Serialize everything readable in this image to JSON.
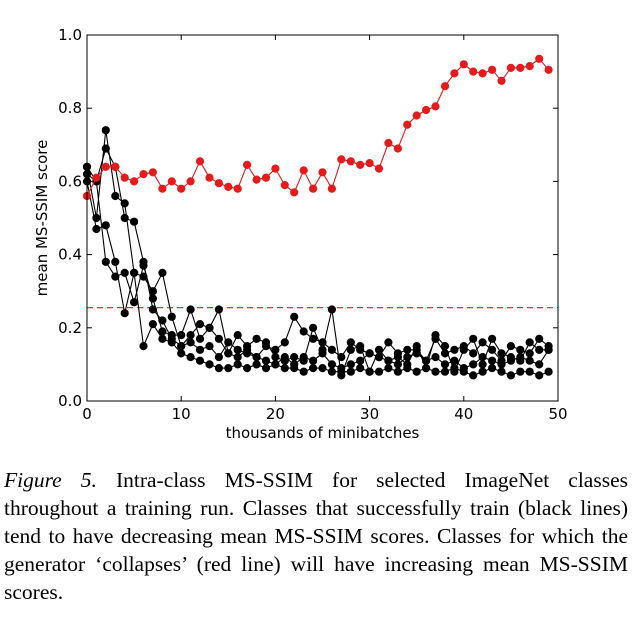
{
  "chart_data": {
    "type": "line",
    "title": "",
    "xlabel": "thousands of minibatches",
    "ylabel": "mean MS-SSIM score",
    "xlim": [
      0,
      50
    ],
    "ylim": [
      0.0,
      1.0
    ],
    "xticks": [
      "0",
      "10",
      "20",
      "30",
      "40",
      "50"
    ],
    "yticks": [
      "0.0",
      "0.2",
      "0.4",
      "0.6",
      "0.8",
      "1.0"
    ],
    "grid": false,
    "threshold": 0.255,
    "colors": {
      "collapse": "#e41a1c",
      "train": "#000000",
      "threshold": "#e41a1c"
    },
    "series": [
      {
        "kind": "collapse",
        "x": [
          0,
          1,
          2,
          3,
          4,
          5,
          6,
          7,
          8,
          9,
          10,
          11,
          12,
          13,
          14,
          15,
          16,
          17,
          18,
          19,
          20,
          21,
          22,
          23,
          24,
          25,
          26,
          27,
          28,
          29,
          30,
          31,
          32,
          33,
          34,
          35,
          36,
          37,
          38,
          39,
          40,
          41,
          42,
          43,
          44,
          45,
          46,
          47,
          48,
          49
        ],
        "y": [
          0.56,
          0.61,
          0.64,
          0.64,
          0.61,
          0.6,
          0.62,
          0.625,
          0.58,
          0.6,
          0.58,
          0.6,
          0.655,
          0.61,
          0.595,
          0.585,
          0.58,
          0.645,
          0.605,
          0.61,
          0.635,
          0.59,
          0.57,
          0.63,
          0.58,
          0.625,
          0.58,
          0.66,
          0.655,
          0.645,
          0.65,
          0.635,
          0.705,
          0.69,
          0.755,
          0.78,
          0.795,
          0.805,
          0.86,
          0.895,
          0.92,
          0.9,
          0.895,
          0.905,
          0.875,
          0.91,
          0.91,
          0.915,
          0.935,
          0.905
        ]
      },
      {
        "kind": "train",
        "x": [
          0,
          1,
          2,
          3,
          4,
          5,
          6,
          7,
          8,
          9,
          10,
          11,
          12,
          13,
          14,
          15,
          16,
          17,
          18,
          19,
          20,
          21,
          22,
          23,
          24,
          25,
          26,
          27,
          28,
          29,
          30,
          31,
          32,
          33,
          34,
          35,
          36,
          37,
          38,
          39,
          40,
          41,
          42,
          43,
          44,
          45,
          46,
          47,
          48,
          49
        ],
        "y": [
          0.64,
          0.5,
          0.74,
          0.56,
          0.54,
          0.35,
          0.34,
          0.3,
          0.35,
          0.23,
          0.15,
          0.18,
          0.21,
          0.2,
          0.17,
          0.13,
          0.12,
          0.14,
          0.12,
          0.15,
          0.14,
          0.16,
          0.23,
          0.19,
          0.17,
          0.16,
          0.14,
          0.12,
          0.16,
          0.14,
          0.13,
          0.12,
          0.16,
          0.13,
          0.14,
          0.14,
          0.11,
          0.17,
          0.13,
          0.14,
          0.15,
          0.13,
          0.16,
          0.14,
          0.11,
          0.15,
          0.14,
          0.13,
          0.17,
          0.15
        ]
      },
      {
        "kind": "train",
        "x": [
          0,
          1,
          2,
          3,
          4,
          5,
          6,
          7,
          8,
          9,
          10,
          11,
          12,
          13,
          14,
          15,
          16,
          17,
          18,
          19,
          20,
          21,
          22,
          23,
          24,
          25,
          26,
          27,
          28,
          29,
          30,
          31,
          32,
          33,
          34,
          35,
          36,
          37,
          38,
          39,
          40,
          41,
          42,
          43,
          44,
          45,
          46,
          47,
          48,
          49
        ],
        "y": [
          0.62,
          0.6,
          0.69,
          0.64,
          0.5,
          0.49,
          0.38,
          0.25,
          0.22,
          0.17,
          0.15,
          0.16,
          0.14,
          0.15,
          0.12,
          0.16,
          0.14,
          0.13,
          0.12,
          0.11,
          0.1,
          0.12,
          0.1,
          0.12,
          0.11,
          0.13,
          0.1,
          0.09,
          0.1,
          0.11,
          0.13,
          0.12,
          0.11,
          0.1,
          0.12,
          0.13,
          0.11,
          0.12,
          0.1,
          0.11,
          0.09,
          0.1,
          0.12,
          0.11,
          0.1,
          0.11,
          0.12,
          0.11,
          0.1,
          0.14
        ]
      },
      {
        "kind": "train",
        "x": [
          0,
          1,
          2,
          3,
          4,
          5,
          6,
          7,
          8,
          9,
          10,
          11,
          12,
          13,
          14,
          15,
          16,
          17,
          18,
          19,
          20,
          21,
          22,
          23,
          24,
          25,
          26,
          27,
          28,
          29,
          30,
          31,
          32,
          33,
          34,
          35,
          36,
          37,
          38,
          39,
          40,
          41,
          42,
          43,
          44,
          45,
          46,
          47,
          48,
          49
        ],
        "y": [
          0.6,
          0.47,
          0.48,
          0.38,
          0.24,
          0.35,
          0.15,
          0.21,
          0.17,
          0.16,
          0.13,
          0.12,
          0.11,
          0.1,
          0.09,
          0.09,
          0.1,
          0.09,
          0.1,
          0.09,
          0.1,
          0.09,
          0.09,
          0.08,
          0.09,
          0.09,
          0.08,
          0.08,
          0.08,
          0.09,
          0.08,
          0.08,
          0.09,
          0.08,
          0.09,
          0.08,
          0.09,
          0.08,
          0.08,
          0.09,
          0.08,
          0.07,
          0.08,
          0.09,
          0.08,
          0.07,
          0.08,
          0.08,
          0.07,
          0.08
        ]
      },
      {
        "kind": "train",
        "x": [
          0,
          1,
          2,
          3,
          4,
          5,
          6,
          7,
          8,
          9,
          10,
          11,
          12,
          13,
          14,
          15,
          16,
          17,
          18,
          19,
          20,
          21,
          22,
          23,
          24,
          25,
          26,
          27,
          28,
          29,
          30,
          31,
          32,
          33,
          34,
          35,
          36,
          37,
          38,
          39,
          40,
          41,
          42,
          43,
          44,
          45,
          46,
          47,
          48,
          49
        ],
        "y": [
          0.64,
          0.6,
          0.38,
          0.34,
          0.35,
          0.27,
          0.37,
          0.28,
          0.19,
          0.18,
          0.18,
          0.25,
          0.17,
          0.2,
          0.25,
          0.13,
          0.18,
          0.15,
          0.17,
          0.16,
          0.12,
          0.11,
          0.12,
          0.11,
          0.2,
          0.14,
          0.25,
          0.07,
          0.14,
          0.15,
          0.08,
          0.14,
          0.11,
          0.12,
          0.1,
          0.15,
          0.09,
          0.18,
          0.15,
          0.08,
          0.14,
          0.17,
          0.1,
          0.17,
          0.13,
          0.12,
          0.11,
          0.16,
          0.14,
          0.14
        ]
      }
    ]
  },
  "caption": {
    "label": "Figure 5.",
    "text": " Intra-class MS-SSIM for selected ImageNet classes throughout a training run. Classes that successfully train (black lines) tend to have decreasing mean MS-SSIM scores. Classes for which the generator ‘collapses’ (red line) will have increasing mean MS-SSIM scores."
  }
}
